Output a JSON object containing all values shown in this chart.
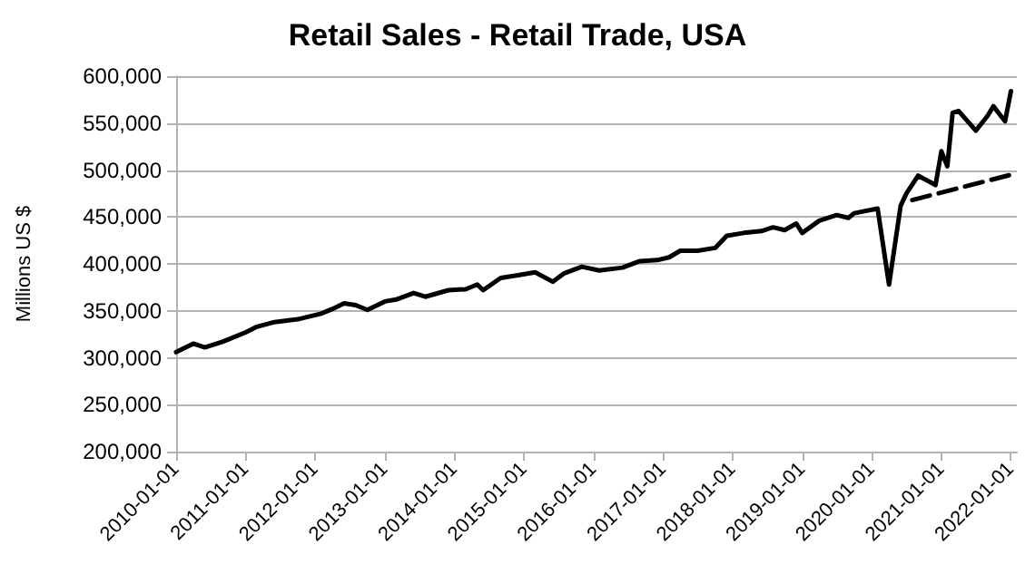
{
  "chart_data": {
    "type": "line",
    "title": "Retail Sales - Retail Trade, USA",
    "ylabel": "Millions US $",
    "xlim": [
      "2010-01-01",
      "2022-02-01"
    ],
    "xticks": [
      "2010-01-01",
      "2011-01-01",
      "2012-01-01",
      "2013-01-01",
      "2014-01-01",
      "2015-01-01",
      "2016-01-01",
      "2017-01-01",
      "2018-01-01",
      "2019-01-01",
      "2020-01-01",
      "2021-01-01",
      "2022-01-01"
    ],
    "ylim": [
      200000,
      600000
    ],
    "yticks": [
      {
        "value": 200000,
        "label": "200,000"
      },
      {
        "value": 250000,
        "label": "250,000"
      },
      {
        "value": 300000,
        "label": "300,000"
      },
      {
        "value": 350000,
        "label": "350,000"
      },
      {
        "value": 400000,
        "label": "400,000"
      },
      {
        "value": 450000,
        "label": "450,000"
      },
      {
        "value": 500000,
        "label": "500,000"
      },
      {
        "value": 550000,
        "label": "550,000"
      },
      {
        "value": 600000,
        "label": "600,000"
      }
    ],
    "grid": "y",
    "marker": "none",
    "series": [
      {
        "color": "#000000",
        "line_style": "solid",
        "x": [
          "2010-01",
          "2010-04",
          "2010-06",
          "2010-09",
          "2011-01",
          "2011-03",
          "2011-06",
          "2011-10",
          "2012-02",
          "2012-04",
          "2012-06",
          "2012-08",
          "2012-10",
          "2013-01",
          "2013-03",
          "2013-06",
          "2013-08",
          "2013-12",
          "2014-03",
          "2014-05",
          "2014-06",
          "2014-09",
          "2014-12",
          "2015-03",
          "2015-06",
          "2015-08",
          "2015-11",
          "2016-02",
          "2016-06",
          "2016-09",
          "2016-12",
          "2017-02",
          "2017-04",
          "2017-07",
          "2017-10",
          "2017-12",
          "2018-03",
          "2018-06",
          "2018-08",
          "2018-10",
          "2018-12",
          "2019-01",
          "2019-04",
          "2019-07",
          "2019-09",
          "2019-10",
          "2020-02",
          "2020-04",
          "2020-06",
          "2020-07",
          "2020-09",
          "2020-12",
          "2021-01",
          "2021-02",
          "2021-03",
          "2021-04",
          "2021-07",
          "2021-09",
          "2021-10",
          "2021-12",
          "2022-01"
        ],
        "values": [
          306000,
          315000,
          311000,
          317000,
          327000,
          333000,
          338000,
          341000,
          347000,
          352000,
          358000,
          356000,
          351000,
          360000,
          362000,
          369000,
          365000,
          372000,
          373000,
          378000,
          372000,
          385000,
          388000,
          391000,
          381000,
          390000,
          397000,
          393000,
          396000,
          403000,
          404000,
          407000,
          414000,
          414000,
          417000,
          430000,
          433000,
          435000,
          439000,
          436000,
          443000,
          433000,
          446000,
          452000,
          449000,
          454000,
          459000,
          378000,
          462000,
          475000,
          494000,
          484000,
          520000,
          504000,
          561000,
          563000,
          542000,
          558000,
          568000,
          552000,
          584000
        ]
      },
      {
        "color": "#000000",
        "line_style": "dashed",
        "x": [
          "2020-08",
          "2022-01"
        ],
        "values": [
          468000,
          495000
        ]
      }
    ]
  }
}
